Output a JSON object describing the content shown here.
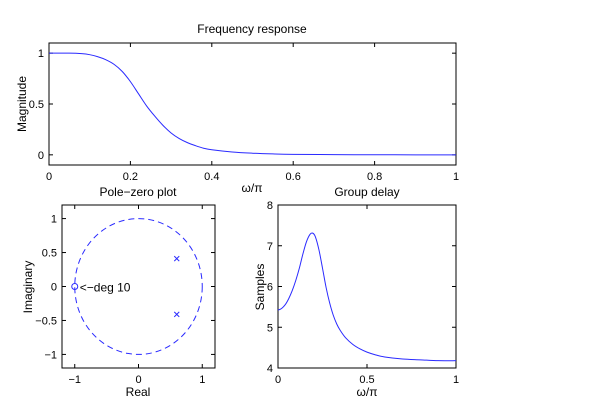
{
  "colors": {
    "line": "#2a2aff",
    "axes": "#000000",
    "background": "#ffffff"
  },
  "chart_data": [
    {
      "id": "freq",
      "type": "line",
      "title": "Frequency response",
      "xlabel": "ω/π",
      "ylabel": "Magnitude",
      "xlim": [
        0,
        1
      ],
      "ylim": [
        -0.1,
        1.1
      ],
      "xticks": [
        0,
        0.2,
        0.4,
        0.6,
        0.8,
        1
      ],
      "xtick_labels": [
        "0",
        "0.2",
        "0.4",
        "0.6",
        "0.8",
        "1"
      ],
      "yticks": [
        0,
        0.5,
        1
      ],
      "ytick_labels": [
        "0",
        "0.5",
        "1"
      ],
      "grid": false,
      "series": [
        {
          "name": "Magnitude",
          "x": [
            0,
            0.05,
            0.08,
            0.1,
            0.12,
            0.14,
            0.16,
            0.18,
            0.2,
            0.22,
            0.24,
            0.26,
            0.28,
            0.3,
            0.32,
            0.34,
            0.36,
            0.38,
            0.4,
            0.45,
            0.5,
            0.55,
            0.6,
            0.7,
            0.8,
            0.9,
            1
          ],
          "y": [
            1,
            1,
            0.995,
            0.985,
            0.965,
            0.935,
            0.89,
            0.82,
            0.72,
            0.6,
            0.48,
            0.38,
            0.29,
            0.215,
            0.16,
            0.12,
            0.09,
            0.065,
            0.05,
            0.028,
            0.016,
            0.009,
            0.005,
            0.002,
            0.001,
            0,
            0
          ]
        }
      ]
    },
    {
      "id": "pz",
      "type": "scatter",
      "title": "Pole−zero plot",
      "xlabel": "Real",
      "ylabel": "Imaginary",
      "xlim": [
        -1.2,
        1.2
      ],
      "ylim": [
        -1.2,
        1.2
      ],
      "xticks": [
        -1,
        0,
        1
      ],
      "xtick_labels": [
        "−1",
        "0",
        "1"
      ],
      "yticks": [
        -1,
        -0.5,
        0,
        0.5,
        1
      ],
      "ytick_labels": [
        "−1",
        "−0.5",
        "0",
        "0.5",
        "1"
      ],
      "grid": false,
      "unit_circle": true,
      "zeros": [
        {
          "re": -1,
          "im": 0,
          "label": "<−deg 10"
        }
      ],
      "poles": [
        {
          "re": 0.6,
          "im": 0.41
        },
        {
          "re": 0.6,
          "im": -0.41
        }
      ]
    },
    {
      "id": "gd",
      "type": "line",
      "title": "Group delay",
      "xlabel": "ω/π",
      "ylabel": "Samples",
      "xlim": [
        0,
        1
      ],
      "ylim": [
        4,
        8
      ],
      "xticks": [
        0,
        0.5,
        1
      ],
      "xtick_labels": [
        "0",
        "0.5",
        "1"
      ],
      "yticks": [
        4,
        5,
        6,
        7,
        8
      ],
      "ytick_labels": [
        "4",
        "5",
        "6",
        "7",
        "8"
      ],
      "grid": false,
      "series": [
        {
          "name": "Group delay",
          "x": [
            0,
            0.02,
            0.04,
            0.06,
            0.08,
            0.1,
            0.12,
            0.14,
            0.16,
            0.18,
            0.195,
            0.21,
            0.23,
            0.25,
            0.27,
            0.29,
            0.31,
            0.33,
            0.35,
            0.38,
            0.42,
            0.46,
            0.5,
            0.55,
            0.6,
            0.7,
            0.8,
            0.9,
            1
          ],
          "y": [
            5.42,
            5.46,
            5.55,
            5.7,
            5.9,
            6.15,
            6.45,
            6.8,
            7.1,
            7.28,
            7.31,
            7.22,
            6.9,
            6.45,
            5.98,
            5.6,
            5.3,
            5.08,
            4.92,
            4.74,
            4.58,
            4.47,
            4.39,
            4.32,
            4.27,
            4.22,
            4.2,
            4.18,
            4.18
          ]
        }
      ]
    }
  ]
}
